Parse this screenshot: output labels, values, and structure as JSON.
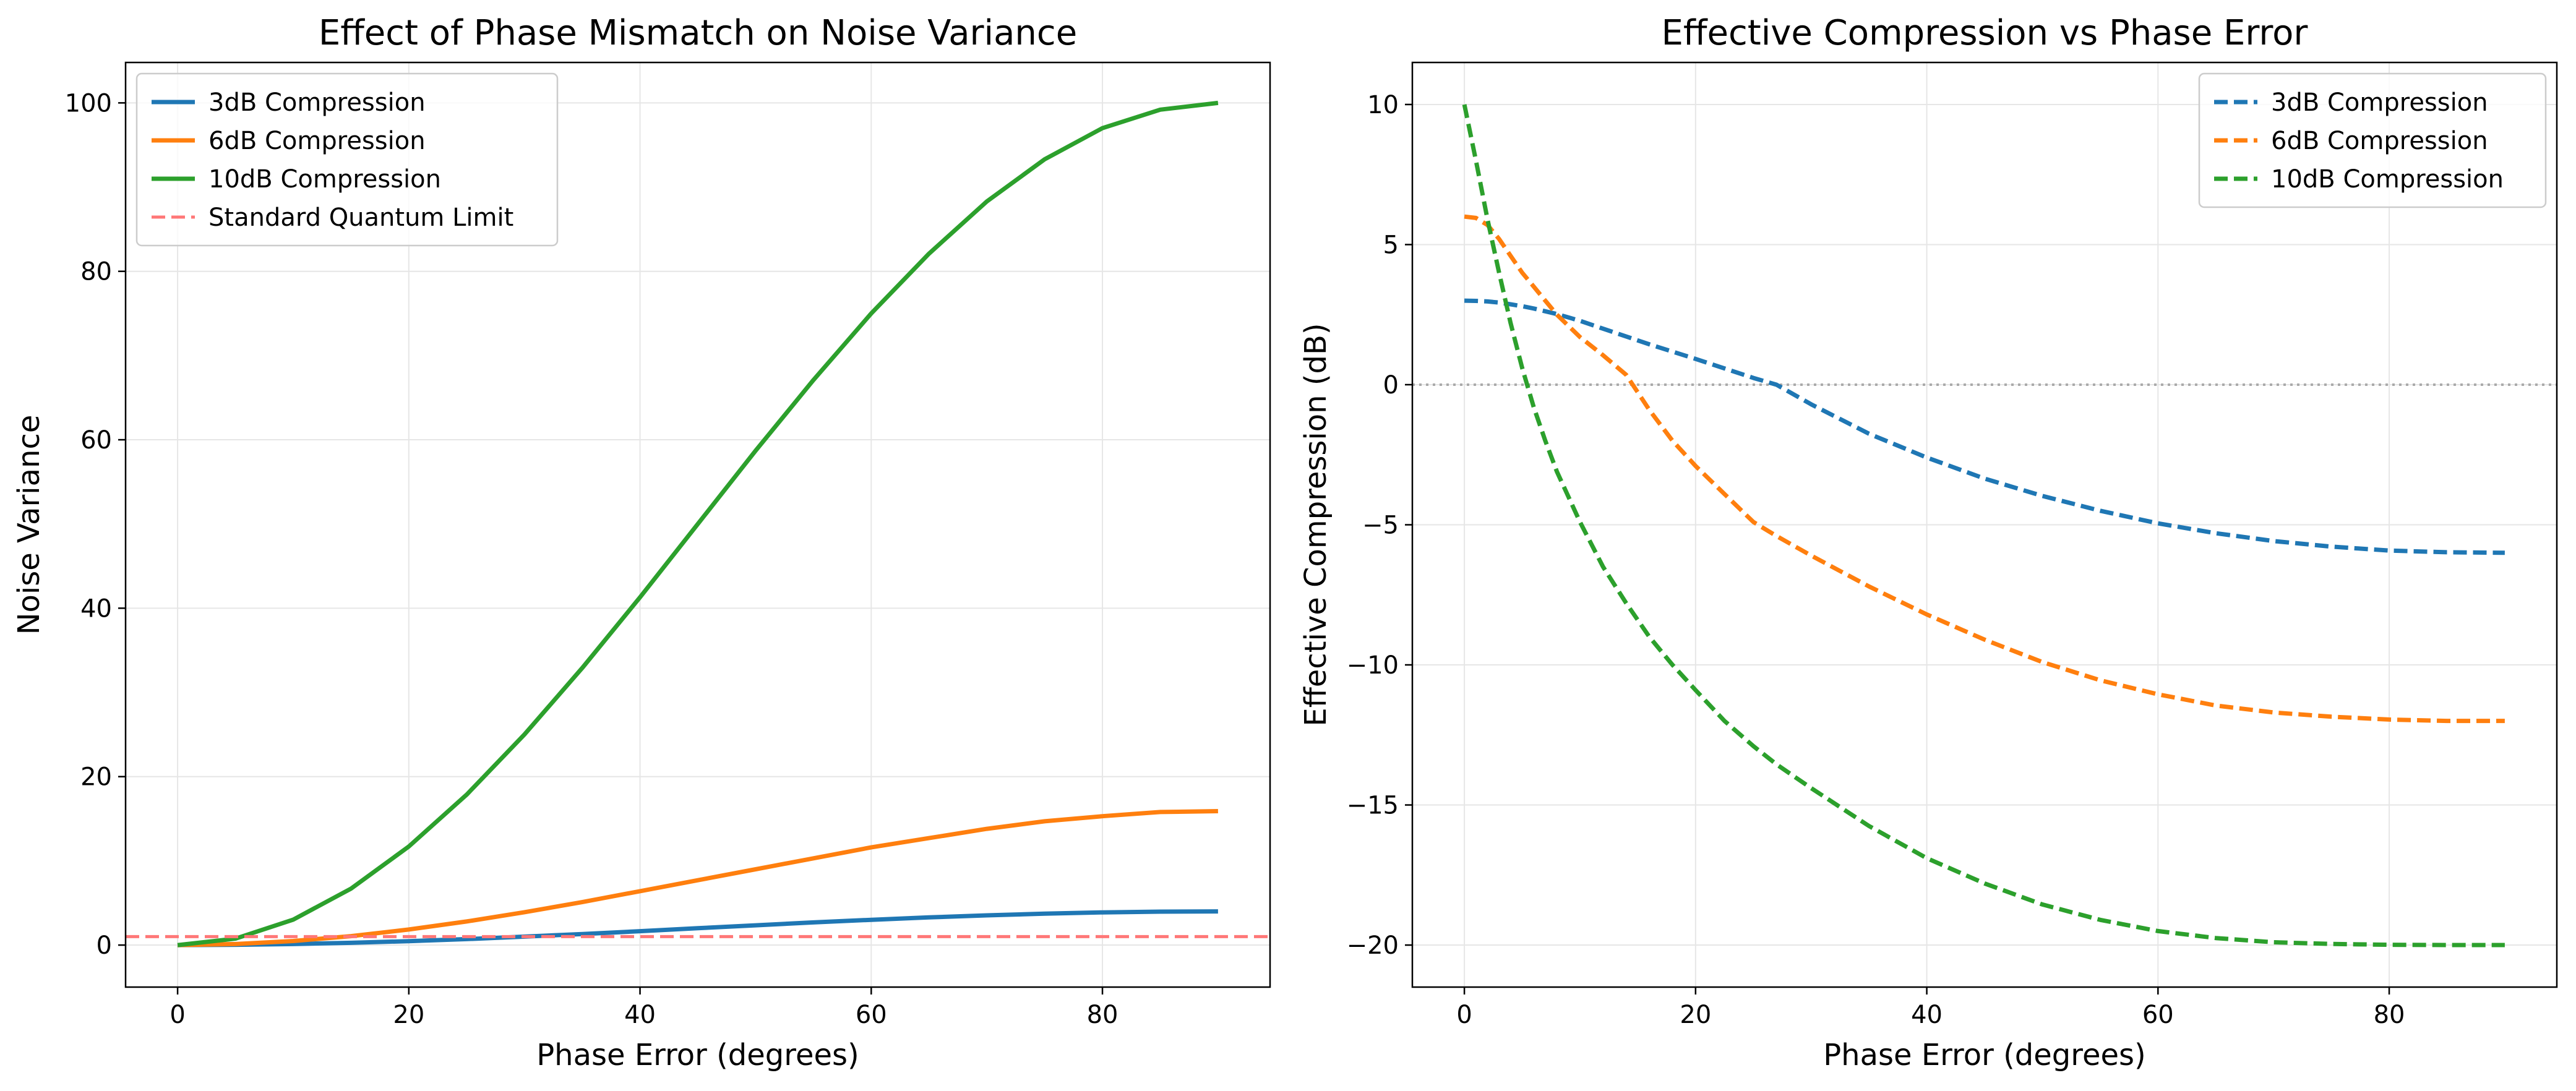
{
  "chart_data": [
    {
      "type": "line",
      "title": "Effect of Phase Mismatch on Noise Variance",
      "xlabel": "Phase Error (degrees)",
      "ylabel": "Noise Variance",
      "xlim": [
        -4.5,
        94.5
      ],
      "ylim": [
        -4.99,
        104.8
      ],
      "xticks": [
        0,
        20,
        40,
        60,
        80
      ],
      "yticks": [
        0,
        20,
        40,
        60,
        80,
        100
      ],
      "grid": true,
      "legend_position": "top-left",
      "x": [
        0,
        5,
        10,
        15,
        20,
        25,
        30,
        35,
        40,
        45,
        50,
        55,
        60,
        65,
        70,
        75,
        80,
        85,
        90
      ],
      "series": [
        {
          "name": "3dB Compression",
          "color": "#1f77b4",
          "style": "solid",
          "values": [
            0.0,
            0.03,
            0.12,
            0.27,
            0.47,
            0.71,
            1.0,
            1.31,
            1.65,
            2.0,
            2.35,
            2.69,
            3.0,
            3.29,
            3.53,
            3.73,
            3.88,
            3.97,
            4.0
          ]
        },
        {
          "name": "6dB Compression",
          "color": "#ff7f0e",
          "style": "solid",
          "values": [
            0.0,
            0.12,
            0.48,
            1.06,
            1.85,
            2.8,
            3.9,
            5.1,
            6.4,
            7.7,
            9.0,
            10.3,
            11.6,
            12.7,
            13.8,
            14.7,
            15.3,
            15.8,
            15.9
          ]
        },
        {
          "name": "10dB Compression",
          "color": "#2ca02c",
          "style": "solid",
          "values": [
            0.0,
            0.76,
            3.02,
            6.7,
            11.7,
            17.86,
            25.0,
            32.9,
            41.3,
            50.0,
            58.7,
            67.1,
            75.0,
            82.1,
            88.3,
            93.3,
            97.0,
            99.2,
            100.0
          ]
        },
        {
          "name": "Standard Quantum Limit",
          "color": "#ff7777",
          "style": "dashed",
          "hline": 1.0
        }
      ]
    },
    {
      "type": "line",
      "title": "Effective Compression vs Phase Error",
      "xlabel": "Phase Error (degrees)",
      "ylabel": "Effective Compression (dB)",
      "xlim": [
        -4.5,
        94.5
      ],
      "ylim": [
        -21.5,
        11.5
      ],
      "xticks": [
        0,
        20,
        40,
        60,
        80
      ],
      "yticks": [
        10,
        5,
        0,
        -5,
        -10,
        -15,
        -20
      ],
      "ytick_labels": [
        "10",
        "5",
        "0",
        "−5",
        "−10",
        "−15",
        "−20"
      ],
      "grid": true,
      "legend_position": "top-right",
      "reference_line": {
        "y": 0,
        "color": "#aaaaaa",
        "style": "dotted"
      },
      "x": [
        0,
        1,
        2,
        3,
        4,
        5,
        6,
        7,
        8,
        10,
        12,
        14,
        16,
        18,
        20,
        22.5,
        25,
        27,
        30,
        35,
        40,
        45,
        50,
        55,
        60,
        65,
        70,
        75,
        80,
        85,
        90
      ],
      "series": [
        {
          "name": "3dB Compression",
          "color": "#1f77b4",
          "style": "dashed",
          "values": [
            3.0,
            2.99,
            2.97,
            2.93,
            2.87,
            2.8,
            2.72,
            2.62,
            2.52,
            2.28,
            2.0,
            1.72,
            1.44,
            1.18,
            0.92,
            0.58,
            0.24,
            0.0,
            -0.7,
            -1.75,
            -2.6,
            -3.35,
            -3.97,
            -4.5,
            -4.95,
            -5.3,
            -5.58,
            -5.78,
            -5.92,
            -5.98,
            -6.0
          ]
        },
        {
          "name": "6dB Compression",
          "color": "#ff7f0e",
          "style": "dashed",
          "values": [
            6.0,
            5.95,
            5.7,
            5.2,
            4.6,
            4.0,
            3.5,
            3.0,
            2.5,
            1.7,
            1.05,
            0.35,
            -0.9,
            -2.0,
            -2.9,
            -3.9,
            -4.9,
            -5.4,
            -6.1,
            -7.2,
            -8.2,
            -9.1,
            -9.9,
            -10.55,
            -11.05,
            -11.45,
            -11.7,
            -11.85,
            -11.95,
            -12.0,
            -12.0
          ]
        },
        {
          "name": "10dB Compression",
          "color": "#2ca02c",
          "style": "dashed",
          "values": [
            10.0,
            8.0,
            5.9,
            4.0,
            2.2,
            0.6,
            -0.8,
            -2.0,
            -3.1,
            -4.9,
            -6.5,
            -7.8,
            -9.0,
            -10.0,
            -10.9,
            -12.0,
            -12.9,
            -13.55,
            -14.4,
            -15.75,
            -16.9,
            -17.8,
            -18.55,
            -19.1,
            -19.5,
            -19.75,
            -19.9,
            -19.96,
            -19.99,
            -20.0,
            -20.0
          ]
        }
      ]
    }
  ]
}
